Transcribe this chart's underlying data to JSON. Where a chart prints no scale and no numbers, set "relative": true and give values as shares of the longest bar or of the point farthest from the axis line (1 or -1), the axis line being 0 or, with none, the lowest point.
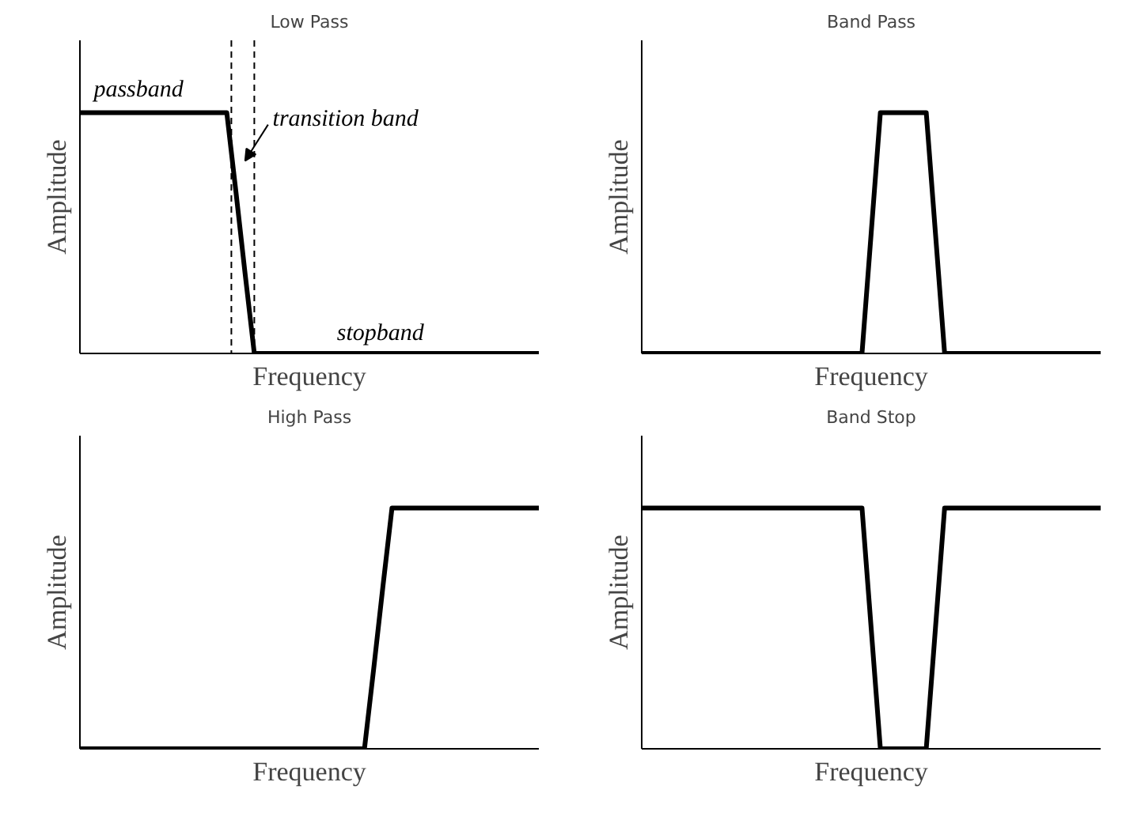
{
  "chart_data": [
    {
      "type": "line",
      "title": "Low Pass",
      "xlabel": "Frequency",
      "ylabel": "Amplitude",
      "relative": true,
      "line_style": "solid",
      "categories": [
        null,
        null,
        null,
        null,
        null,
        null,
        null,
        null,
        null,
        null,
        null,
        null,
        null,
        null,
        null,
        null,
        null,
        null,
        null,
        null,
        null,
        null,
        null,
        null,
        null,
        null,
        null,
        null,
        null,
        null,
        null,
        null,
        null,
        null,
        null,
        null,
        null,
        null,
        null,
        null,
        null,
        null,
        null,
        null,
        null,
        null,
        null,
        null,
        null,
        null,
        null
      ],
      "series": [
        {
          "color": "#000000",
          "values": [
            1,
            1,
            1,
            1,
            1,
            1,
            1,
            1,
            1,
            1,
            1,
            1,
            1,
            1,
            1,
            1,
            1,
            0.67,
            0.33,
            0,
            0,
            0,
            0,
            0,
            0,
            0,
            0,
            0,
            0,
            0,
            0,
            0,
            0,
            0,
            0,
            0,
            0,
            0,
            0,
            0,
            0,
            0,
            0,
            0,
            0,
            0,
            0,
            0,
            0,
            0,
            0
          ]
        }
      ],
      "annotations": [
        "passband",
        "transition band",
        "stopband"
      ]
    },
    {
      "type": "line",
      "title": "Band Pass",
      "xlabel": "Frequency",
      "ylabel": "Amplitude",
      "relative": true,
      "line_style": "solid",
      "categories": [
        null,
        null,
        null,
        null,
        null,
        null,
        null,
        null,
        null,
        null,
        null,
        null,
        null,
        null,
        null,
        null,
        null,
        null,
        null,
        null,
        null,
        null,
        null,
        null,
        null,
        null,
        null,
        null,
        null,
        null,
        null,
        null,
        null,
        null,
        null,
        null,
        null,
        null,
        null,
        null,
        null,
        null,
        null,
        null,
        null,
        null,
        null,
        null,
        null,
        null,
        null
      ],
      "series": [
        {
          "color": "#000000",
          "values": [
            0,
            0,
            0,
            0,
            0,
            0,
            0,
            0,
            0,
            0,
            0,
            0,
            0,
            0,
            0,
            0,
            0,
            0,
            0,
            0,
            0,
            0,
            0,
            0,
            0,
            0.5,
            1,
            1,
            1,
            1,
            1,
            1,
            0.5,
            0,
            0,
            0,
            0,
            0,
            0,
            0,
            0,
            0,
            0,
            0,
            0,
            0,
            0,
            0,
            0,
            0,
            0
          ]
        }
      ]
    },
    {
      "type": "line",
      "title": "High Pass",
      "xlabel": "Frequency",
      "ylabel": "Amplitude",
      "relative": true,
      "line_style": "solid",
      "categories": [
        null,
        null,
        null,
        null,
        null,
        null,
        null,
        null,
        null,
        null,
        null,
        null,
        null,
        null,
        null,
        null,
        null,
        null,
        null,
        null,
        null,
        null,
        null,
        null,
        null,
        null,
        null,
        null,
        null,
        null,
        null,
        null,
        null,
        null,
        null,
        null,
        null,
        null,
        null,
        null,
        null,
        null,
        null,
        null,
        null,
        null,
        null,
        null,
        null,
        null,
        null
      ],
      "series": [
        {
          "color": "#000000",
          "values": [
            0,
            0,
            0,
            0,
            0,
            0,
            0,
            0,
            0,
            0,
            0,
            0,
            0,
            0,
            0,
            0,
            0,
            0,
            0,
            0,
            0,
            0,
            0,
            0,
            0,
            0,
            0,
            0,
            0,
            0,
            0,
            0,
            0.33,
            0.67,
            1,
            1,
            1,
            1,
            1,
            1,
            1,
            1,
            1,
            1,
            1,
            1,
            1,
            1,
            1,
            1,
            1
          ]
        }
      ]
    },
    {
      "type": "line",
      "title": "Band Stop",
      "xlabel": "Frequency",
      "ylabel": "Amplitude",
      "relative": true,
      "line_style": "solid",
      "categories": [
        null,
        null,
        null,
        null,
        null,
        null,
        null,
        null,
        null,
        null,
        null,
        null,
        null,
        null,
        null,
        null,
        null,
        null,
        null,
        null,
        null,
        null,
        null,
        null,
        null,
        null,
        null,
        null,
        null,
        null,
        null,
        null,
        null,
        null,
        null,
        null,
        null,
        null,
        null,
        null,
        null,
        null,
        null,
        null,
        null,
        null,
        null,
        null,
        null,
        null,
        null
      ],
      "series": [
        {
          "color": "#000000",
          "values": [
            1,
            1,
            1,
            1,
            1,
            1,
            1,
            1,
            1,
            1,
            1,
            1,
            1,
            1,
            1,
            1,
            1,
            1,
            1,
            1,
            1,
            1,
            1,
            1,
            1,
            0.5,
            0,
            0,
            0,
            0,
            0,
            0,
            0.5,
            1,
            1,
            1,
            1,
            1,
            1,
            1,
            1,
            1,
            1,
            1,
            1,
            1,
            1,
            1,
            1,
            1,
            1
          ]
        }
      ]
    }
  ]
}
